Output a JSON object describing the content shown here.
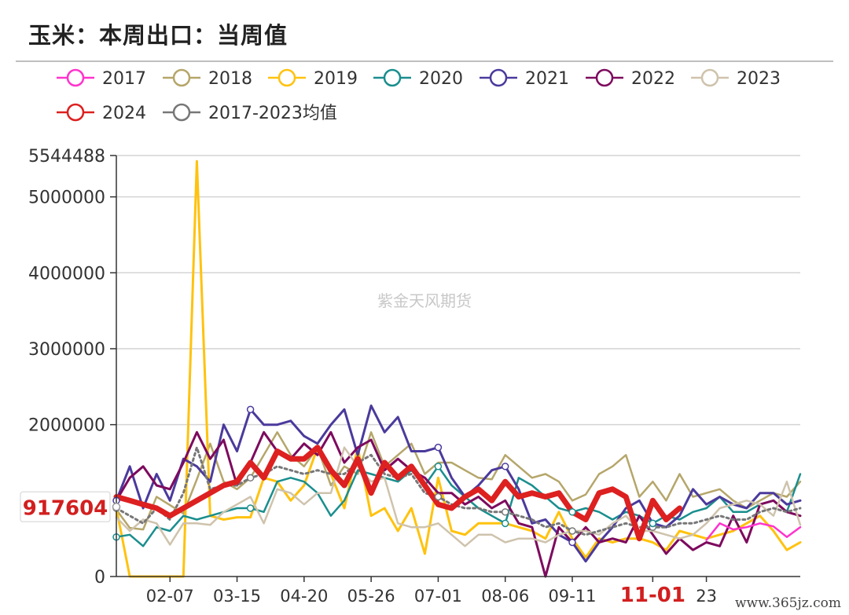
{
  "title": "玉米：本周出口：当周值",
  "watermark": "紫金天风期货",
  "site_mark": "www.365jz.com",
  "chart_data": {
    "type": "line",
    "title": "玉米：本周出口：当周值",
    "xlabel": "",
    "ylabel": "",
    "ylim": [
      0,
      5544488
    ],
    "yticks": [
      "0",
      "2000000",
      "3000000",
      "4000000",
      "5000000",
      "5544488"
    ],
    "ytick_values": [
      0,
      2000000,
      3000000,
      4000000,
      5000000,
      5544488
    ],
    "x_tick_labels": [
      "02-07",
      "03-15",
      "04-20",
      "05-26",
      "07-01",
      "08-06",
      "09-11",
      "11-01",
      "23"
    ],
    "x_tick_weeks": [
      4,
      9,
      14,
      19,
      24,
      29,
      34,
      40,
      44
    ],
    "highlight_x_label": "11-01",
    "current_value_label": "917604",
    "current_value": 917604,
    "weeks": 52,
    "legend_placement": "top",
    "series": [
      {
        "name": "2017",
        "color": "#ff33cc",
        "width": 2.5,
        "dash": "",
        "values": [
          null,
          null,
          null,
          null,
          null,
          null,
          null,
          null,
          null,
          null,
          null,
          null,
          null,
          null,
          null,
          null,
          null,
          null,
          null,
          null,
          null,
          null,
          null,
          null,
          null,
          null,
          null,
          null,
          null,
          null,
          null,
          null,
          null,
          null,
          null,
          null,
          null,
          null,
          null,
          null,
          null,
          null,
          null,
          null,
          480000,
          700000,
          620000,
          650000,
          700000,
          660000,
          520000,
          650000
        ]
      },
      {
        "name": "2018",
        "color": "#b5a66a",
        "width": 2.5,
        "dash": "",
        "values": [
          880000,
          640000,
          620000,
          1050000,
          940000,
          830000,
          1280000,
          1750000,
          1250000,
          1150000,
          1300000,
          1600000,
          1900000,
          1600000,
          1450000,
          1700000,
          1200000,
          1450000,
          1350000,
          1900000,
          1450000,
          1600000,
          1750000,
          1350000,
          1500000,
          1500000,
          1400000,
          1300000,
          1280000,
          1600000,
          1450000,
          1300000,
          1350000,
          1250000,
          1000000,
          1080000,
          1350000,
          1450000,
          1600000,
          1050000,
          1250000,
          1000000,
          1350000,
          1050000,
          1100000,
          1150000,
          1000000,
          900000,
          1000000,
          1100000,
          1050000,
          1250000
        ]
      },
      {
        "name": "2019",
        "color": "#ffc20e",
        "width": 3,
        "dash": "",
        "values": [
          900000,
          0,
          0,
          0,
          0,
          0,
          5470000,
          800000,
          750000,
          780000,
          780000,
          1300000,
          1250000,
          1000000,
          1200000,
          1700000,
          1350000,
          900000,
          1700000,
          800000,
          900000,
          600000,
          900000,
          300000,
          1300000,
          600000,
          550000,
          700000,
          700000,
          700000,
          650000,
          600000,
          500000,
          850000,
          500000,
          250000,
          500000,
          450000,
          500000,
          500000,
          450000,
          350000,
          600000,
          550000,
          500000,
          550000,
          600000,
          700000,
          800000,
          600000,
          350000,
          450000
        ]
      },
      {
        "name": "2020",
        "color": "#1a8e8e",
        "width": 2.5,
        "dash": "",
        "values": [
          520000,
          550000,
          400000,
          650000,
          600000,
          800000,
          750000,
          800000,
          850000,
          900000,
          900000,
          850000,
          1250000,
          1300000,
          1250000,
          1100000,
          800000,
          1000000,
          1400000,
          1350000,
          1300000,
          1250000,
          1400000,
          1200000,
          1450000,
          1200000,
          1050000,
          900000,
          800000,
          700000,
          1300000,
          1200000,
          1050000,
          900000,
          850000,
          900000,
          850000,
          750000,
          850000,
          800000,
          700000,
          800000,
          750000,
          850000,
          900000,
          1050000,
          850000,
          850000,
          950000,
          1000000,
          850000,
          1350000
        ]
      },
      {
        "name": "2021",
        "color": "#4b3a9c",
        "width": 3,
        "dash": "",
        "values": [
          1000000,
          1450000,
          900000,
          1350000,
          1000000,
          1550000,
          1450000,
          1250000,
          2000000,
          1650000,
          2200000,
          2000000,
          2000000,
          2050000,
          1850000,
          1750000,
          2000000,
          2200000,
          1600000,
          2250000,
          1900000,
          2100000,
          1650000,
          1650000,
          1700000,
          1300000,
          1050000,
          1200000,
          1400000,
          1450000,
          1150000,
          700000,
          750000,
          550000,
          450000,
          200000,
          450000,
          650000,
          900000,
          1000000,
          700000,
          650000,
          800000,
          1150000,
          950000,
          1050000,
          950000,
          900000,
          1100000,
          1100000,
          950000,
          1000000
        ]
      },
      {
        "name": "2022",
        "color": "#7d0a5e",
        "width": 3,
        "dash": "",
        "values": [
          1000000,
          1300000,
          1450000,
          1200000,
          1150000,
          1500000,
          1900000,
          1550000,
          1800000,
          1200000,
          1500000,
          1900000,
          1650000,
          1550000,
          1750000,
          1600000,
          1900000,
          1500000,
          1700000,
          1800000,
          1400000,
          1550000,
          1400000,
          1300000,
          1100000,
          1100000,
          950000,
          1050000,
          900000,
          1000000,
          700000,
          650000,
          0,
          650000,
          450000,
          650000,
          450000,
          500000,
          450000,
          800000,
          550000,
          300000,
          500000,
          350000,
          450000,
          400000,
          800000,
          450000,
          950000,
          1000000,
          850000,
          800000
        ]
      },
      {
        "name": "2023",
        "color": "#cfc3ad",
        "width": 2.5,
        "dash": "",
        "values": [
          780000,
          600000,
          750000,
          700000,
          420000,
          700000,
          700000,
          680000,
          850000,
          950000,
          1050000,
          700000,
          1150000,
          1100000,
          950000,
          1100000,
          1100000,
          1700000,
          1450000,
          1250000,
          1300000,
          700000,
          650000,
          650000,
          700000,
          550000,
          400000,
          550000,
          550000,
          450000,
          500000,
          500000,
          450000,
          550000,
          600000,
          600000,
          550000,
          700000,
          800000,
          600000,
          600000,
          550000,
          500000,
          550000,
          700000,
          900000,
          950000,
          1000000,
          950000,
          800000,
          1250000,
          680000
        ]
      },
      {
        "name": "2024",
        "color": "#dd2020",
        "width": 7,
        "dash": "",
        "values": [
          1050000,
          1000000,
          950000,
          900000,
          800000,
          900000,
          1000000,
          1100000,
          1200000,
          1250000,
          1500000,
          1300000,
          1650000,
          1550000,
          1550000,
          1700000,
          1400000,
          1200000,
          1550000,
          1100000,
          1500000,
          1300000,
          1450000,
          1200000,
          950000,
          900000,
          1050000,
          1150000,
          1000000,
          1250000,
          1050000,
          1100000,
          1050000,
          1100000,
          850000,
          750000,
          1100000,
          1150000,
          1050000,
          500000,
          1000000,
          750000,
          900000
        ]
      },
      {
        "name": "2017-2023均值",
        "color": "#777777",
        "width": 3,
        "dash": "3,4",
        "values": [
          900000,
          800000,
          700000,
          900000,
          750000,
          1100000,
          1700000,
          1150000,
          1200000,
          1200000,
          1300000,
          1350000,
          1450000,
          1400000,
          1350000,
          1400000,
          1350000,
          1350000,
          1500000,
          1600000,
          1350000,
          1300000,
          1350000,
          1100000,
          1050000,
          950000,
          900000,
          900000,
          850000,
          850000,
          800000,
          750000,
          650000,
          700000,
          600000,
          550000,
          600000,
          650000,
          700000,
          650000,
          650000,
          650000,
          700000,
          700000,
          750000,
          800000,
          750000,
          750000,
          850000,
          900000,
          850000,
          900000
        ]
      }
    ]
  }
}
